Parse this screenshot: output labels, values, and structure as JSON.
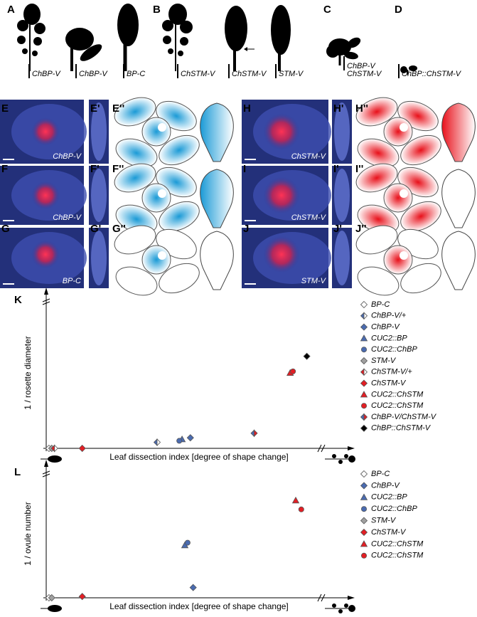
{
  "figure": {
    "panel_labels": [
      "A",
      "B",
      "C",
      "D",
      "E",
      "E'",
      "E''",
      "F",
      "F'",
      "F''",
      "G",
      "G'",
      "G''",
      "H",
      "H'",
      "H''",
      "I",
      "I'",
      "I''",
      "J",
      "J'",
      "J''"
    ],
    "captions": [
      "ChBP-V",
      "ChBP-V",
      "BP-C",
      "ChSTM-V",
      "ChSTM-V",
      "STM-V",
      "ChBP-V",
      "ChSTM-V",
      "ChBP::ChSTM-V"
    ],
    "image_labels": [
      "ChBP-V",
      "ChBP-V",
      "BP-C",
      "ChSTM-V",
      "ChSTM-V",
      "STM-V"
    ]
  },
  "chart_data": [
    {
      "type": "scatter",
      "panel": "K",
      "xlabel": "Leaf dissection index [degree of shape change]",
      "ylabel": "1 / rosette diameter",
      "xlim": [
        0,
        1
      ],
      "ylim": [
        0,
        1
      ],
      "series": [
        {
          "name": "BP-C",
          "marker": "diamond",
          "color": "#ffffff",
          "x": [
            0.01
          ],
          "y": [
            0.0
          ]
        },
        {
          "name": "ChBP-V/+",
          "marker": "half-diamond",
          "color": "#4a6bb0",
          "color2": "#ffffff",
          "x": [
            0.4
          ],
          "y": [
            0.04
          ]
        },
        {
          "name": "ChBP-V",
          "marker": "diamond",
          "color": "#4a6bb0",
          "x": [
            0.52
          ],
          "y": [
            0.07
          ]
        },
        {
          "name": "CUC2::BP",
          "marker": "triangle",
          "color": "#4a6bb0",
          "x": [
            0.49
          ],
          "y": [
            0.06
          ]
        },
        {
          "name": "CUC2::ChBP",
          "marker": "circle",
          "color": "#4a6bb0",
          "x": [
            0.48
          ],
          "y": [
            0.05
          ]
        },
        {
          "name": "STM-V",
          "marker": "diamond",
          "color": "#a0a0a0",
          "x": [
            0.02
          ],
          "y": [
            0.0
          ]
        },
        {
          "name": "ChSTM-V/+",
          "marker": "half-diamond",
          "color": "#e31e24",
          "color2": "#ffffff",
          "x": [
            0.03
          ],
          "y": [
            0.0
          ]
        },
        {
          "name": "ChSTM-V",
          "marker": "diamond",
          "color": "#e31e24",
          "x": [
            0.13
          ],
          "y": [
            0.0
          ]
        },
        {
          "name": "CUC2::ChSTM",
          "marker": "triangle",
          "color": "#e31e24",
          "x": [
            0.88
          ],
          "y": [
            0.5
          ]
        },
        {
          "name": "CUC2::ChSTM",
          "marker": "circle",
          "color": "#e31e24",
          "x": [
            0.89
          ],
          "y": [
            0.51
          ]
        },
        {
          "name": "ChBP-V/ChSTM-V",
          "marker": "half-diamond",
          "color": "#4a6bb0",
          "color2": "#e31e24",
          "x": [
            0.75
          ],
          "y": [
            0.1
          ]
        },
        {
          "name": "ChBP::ChSTM-V",
          "marker": "diamond",
          "color": "#000000",
          "x": [
            0.94
          ],
          "y": [
            0.61
          ]
        }
      ]
    },
    {
      "type": "scatter",
      "panel": "L",
      "xlabel": "Leaf dissection index [degree of shape change]",
      "ylabel": "1 / ovule number",
      "xlim": [
        0,
        1
      ],
      "ylim": [
        0,
        1
      ],
      "series": [
        {
          "name": "BP-C",
          "marker": "diamond",
          "color": "#ffffff",
          "x": [
            0.01
          ],
          "y": [
            0.0
          ]
        },
        {
          "name": "ChBP-V",
          "marker": "diamond",
          "color": "#4a6bb0",
          "x": [
            0.53
          ],
          "y": [
            0.08
          ]
        },
        {
          "name": "CUC2::BP",
          "marker": "triangle",
          "color": "#4a6bb0",
          "x": [
            0.5
          ],
          "y": [
            0.41
          ]
        },
        {
          "name": "CUC2::ChBP",
          "marker": "circle",
          "color": "#4a6bb0",
          "x": [
            0.51
          ],
          "y": [
            0.43
          ]
        },
        {
          "name": "STM-V",
          "marker": "diamond",
          "color": "#a0a0a0",
          "x": [
            0.02
          ],
          "y": [
            0.0
          ]
        },
        {
          "name": "ChSTM-V",
          "marker": "diamond",
          "color": "#e31e24",
          "x": [
            0.13
          ],
          "y": [
            0.01
          ]
        },
        {
          "name": "CUC2::ChSTM",
          "marker": "triangle",
          "color": "#e31e24",
          "x": [
            0.9
          ],
          "y": [
            0.76
          ]
        },
        {
          "name": "CUC2::ChSTM",
          "marker": "circle",
          "color": "#e31e24",
          "x": [
            0.92
          ],
          "y": [
            0.69
          ]
        }
      ]
    }
  ]
}
